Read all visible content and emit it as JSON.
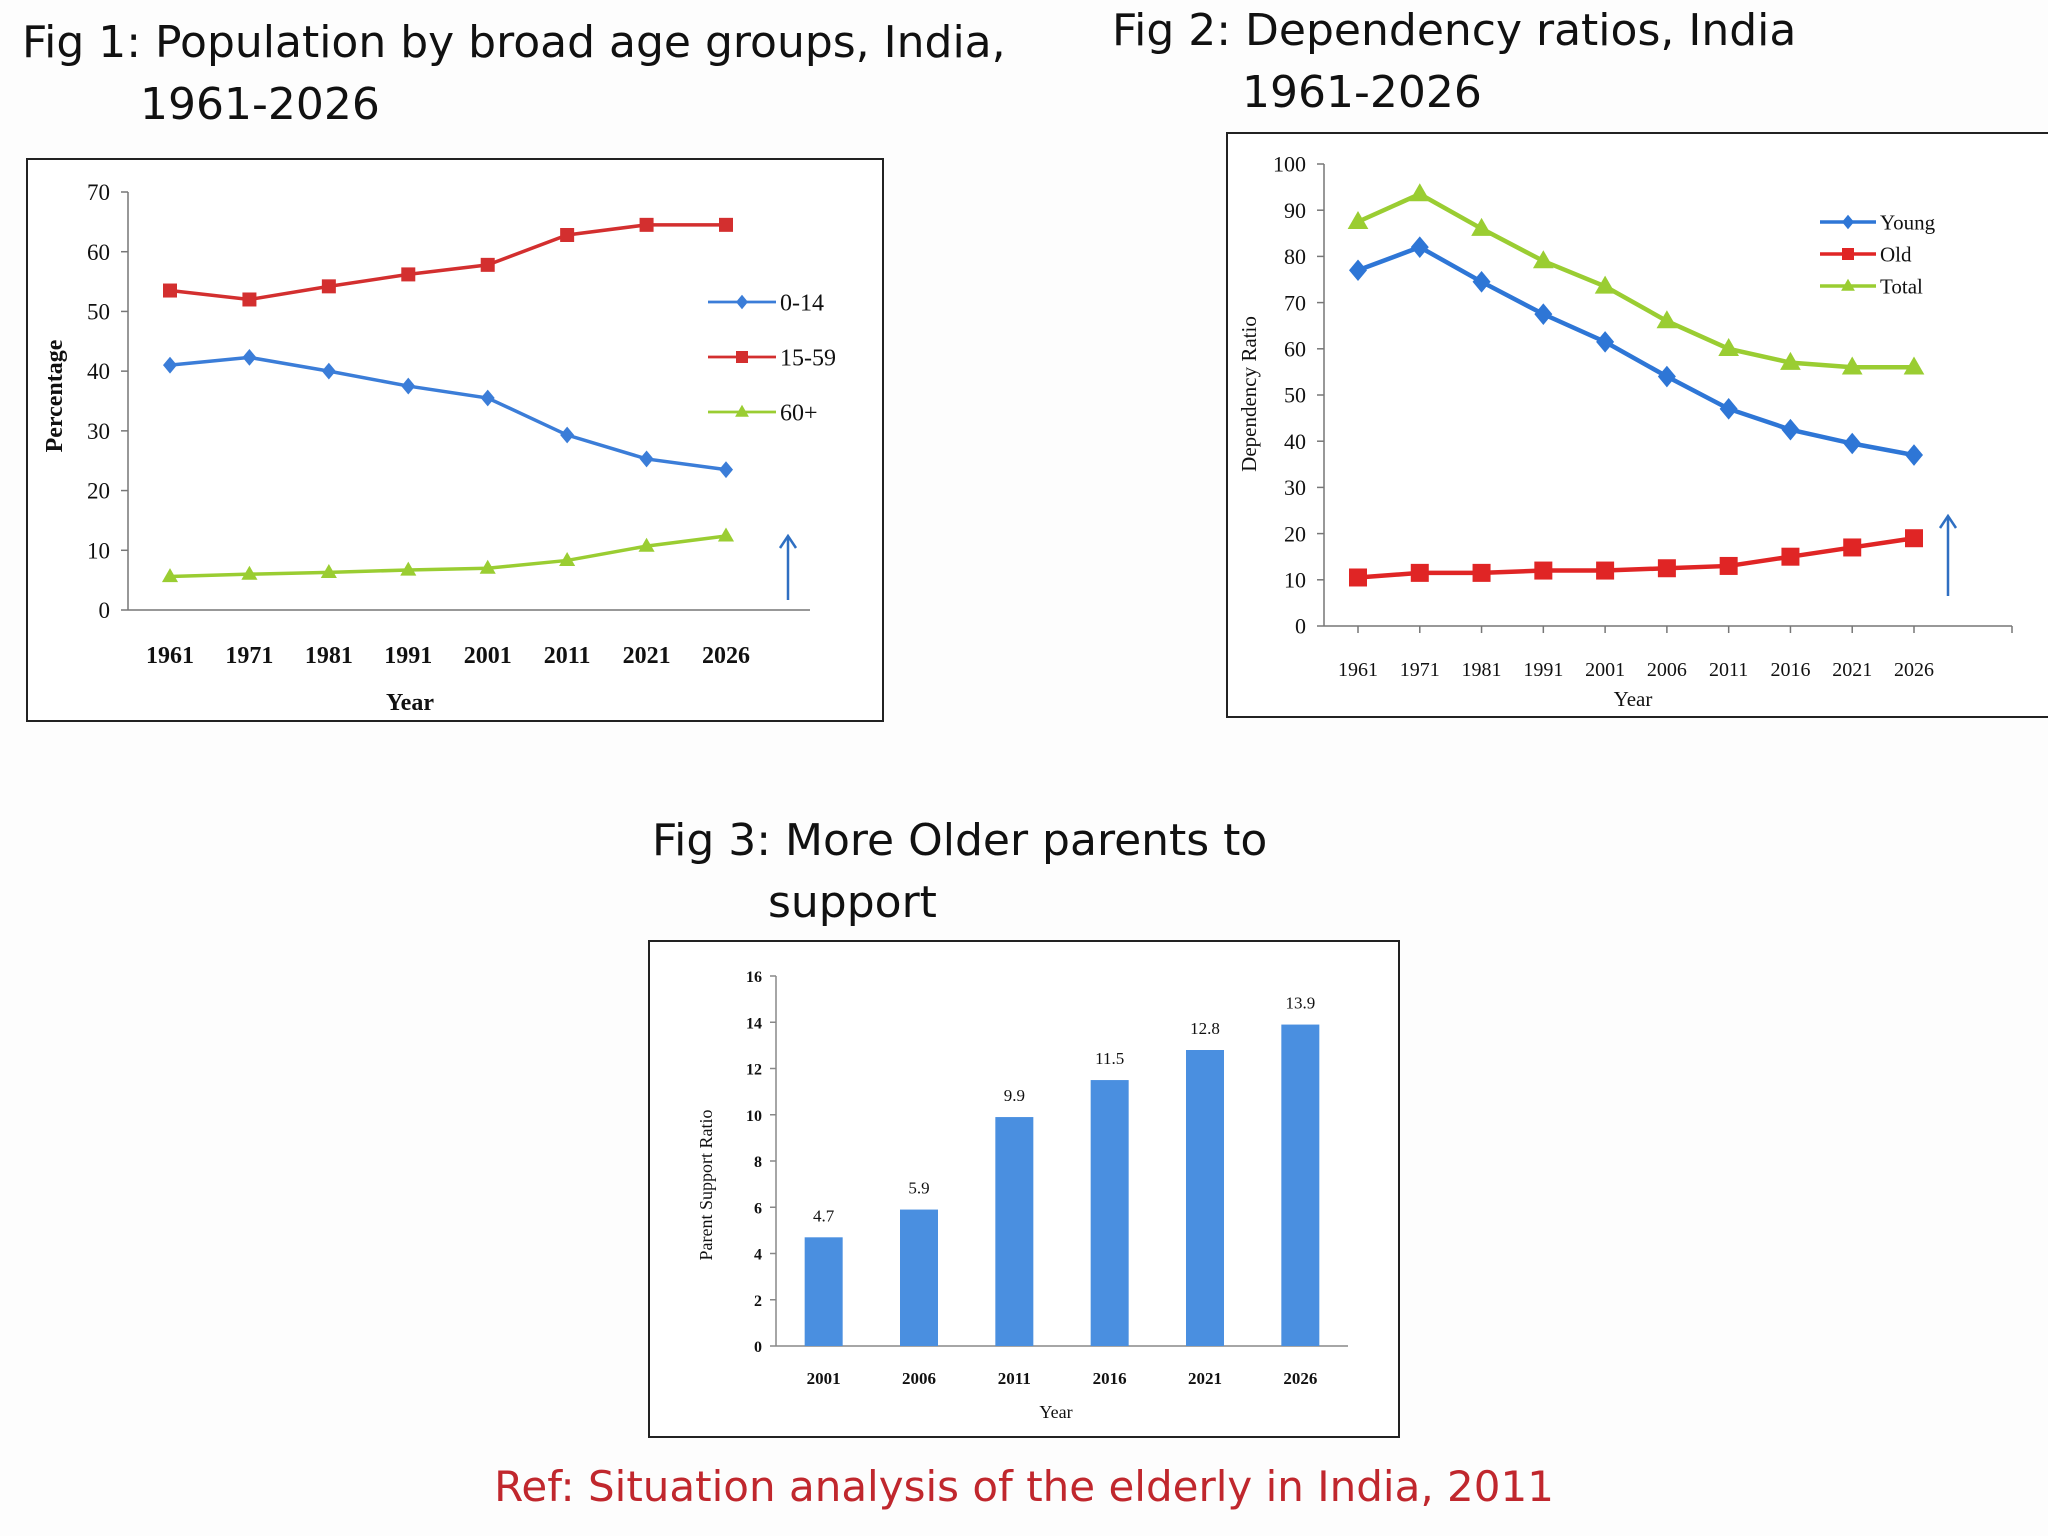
{
  "figures": {
    "fig1": {
      "title_line1": "Fig 1: Population by broad age groups, India,",
      "title_line2": "1961-2026"
    },
    "fig2": {
      "title_line1": "Fig 2: Dependency ratios, India",
      "title_line2": "1961-2026"
    },
    "fig3": {
      "title_line1": "Fig 3: More Older parents to",
      "title_line2": "support"
    }
  },
  "reference": "Ref: Situation analysis of the elderly in India, 2011",
  "chart_data": [
    {
      "type": "line",
      "title": "Fig 1: Population by broad age groups, India, 1961-2026",
      "xlabel": "Year",
      "ylabel": "Percentage",
      "categories": [
        "1961",
        "1971",
        "1981",
        "1991",
        "2001",
        "2011",
        "2021",
        "2026"
      ],
      "ylim": [
        0,
        70
      ],
      "yticks": [
        0,
        10,
        20,
        30,
        40,
        50,
        60,
        70
      ],
      "grid": false,
      "legend": "right",
      "annotation": "up-arrow",
      "series": [
        {
          "name": "0-14",
          "color": "#3b7dd8",
          "marker": "diamond",
          "values": [
            41,
            42.3,
            40,
            37.5,
            35.5,
            29.3,
            25.3,
            23.5
          ]
        },
        {
          "name": "15-59",
          "color": "#d32f2f",
          "marker": "square",
          "values": [
            53.5,
            52,
            54.2,
            56.2,
            57.8,
            62.8,
            64.5,
            64.5
          ]
        },
        {
          "name": "60+",
          "color": "#9acd32",
          "marker": "triangle",
          "values": [
            5.6,
            6,
            6.3,
            6.7,
            7,
            8.3,
            10.7,
            12.4
          ]
        }
      ]
    },
    {
      "type": "line",
      "title": "Fig 2: Dependency ratios, India 1961-2026",
      "xlabel": "Year",
      "ylabel": "Dependency Ratio",
      "categories": [
        "1961",
        "1971",
        "1981",
        "1991",
        "2001",
        "2006",
        "2011",
        "2016",
        "2021",
        "2026"
      ],
      "ylim": [
        0,
        100
      ],
      "yticks": [
        0,
        10,
        20,
        30,
        40,
        50,
        60,
        70,
        80,
        90,
        100
      ],
      "grid": false,
      "legend": "top-right",
      "annotation": "up-arrow",
      "series": [
        {
          "name": "Young",
          "color": "#2e76d6",
          "marker": "diamond",
          "values": [
            77,
            82,
            74.5,
            67.5,
            61.5,
            54,
            47,
            42.5,
            39.5,
            37
          ]
        },
        {
          "name": "Old",
          "color": "#e02525",
          "marker": "square",
          "values": [
            10.5,
            11.5,
            11.5,
            12,
            12,
            12.5,
            13,
            15,
            17,
            19
          ]
        },
        {
          "name": "Total",
          "color": "#9acd32",
          "marker": "triangle",
          "values": [
            87.5,
            93.5,
            86,
            79,
            73.5,
            66,
            60,
            57,
            56,
            56
          ]
        }
      ]
    },
    {
      "type": "bar",
      "title": "Fig 3: More Older parents to support",
      "xlabel": "Year",
      "ylabel": "Parent Support Ratio",
      "categories": [
        "2001",
        "2006",
        "2011",
        "2016",
        "2021",
        "2026"
      ],
      "values": [
        4.7,
        5.9,
        9.9,
        11.5,
        12.8,
        13.9
      ],
      "value_labels": [
        "4.7",
        "5.9",
        "9.9",
        "11.5",
        "12.8",
        "13.9"
      ],
      "ylim": [
        0,
        16
      ],
      "yticks": [
        0,
        2,
        4,
        6,
        8,
        10,
        12,
        14,
        16
      ],
      "grid": false,
      "color": "#4a8fe0"
    }
  ]
}
